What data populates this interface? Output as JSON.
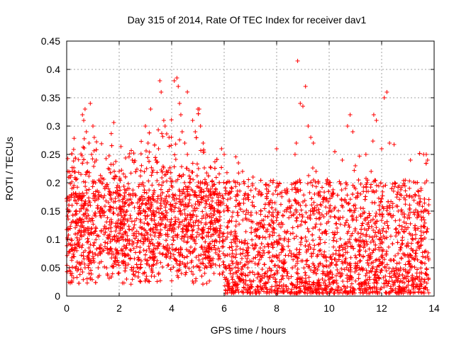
{
  "chart_data": {
    "type": "scatter",
    "title": "Day 315 of 2014, Rate Of TEC Index for receiver dav1",
    "xlabel": "GPS time / hours",
    "ylabel": "ROTI / TECUs",
    "xlim": [
      0,
      14
    ],
    "ylim": [
      0,
      0.45
    ],
    "xticks": [
      "0",
      "2",
      "4",
      "6",
      "8",
      "10",
      "12",
      "14"
    ],
    "yticks": [
      "0",
      "0.05",
      "0.1",
      "0.15",
      "0.2",
      "0.25",
      "0.3",
      "0.35",
      "0.4",
      "0.45"
    ],
    "grid": true,
    "marker": "+",
    "color": "#ff0000",
    "series": [
      {
        "name": "ROTI",
        "x": [
          0.05,
          0.1,
          0.15,
          0.2,
          0.1,
          0.2,
          0.3,
          0.05,
          0.12,
          0.25,
          0.4,
          0.5,
          0.55,
          0.6,
          0.65,
          0.7,
          0.75,
          0.8,
          0.85,
          0.9,
          0.95,
          1.0,
          1.05,
          1.1,
          0.6,
          0.7,
          0.8,
          0.9,
          1.0,
          0.75,
          0.85,
          0.95,
          1.05,
          1.2,
          1.3,
          1.5,
          1.7,
          1.9,
          2.0,
          2.1,
          2.3,
          2.5,
          2.7,
          2.9,
          3.0,
          3.1,
          3.2,
          3.3,
          3.4,
          3.5,
          3.55,
          3.6,
          3.7,
          3.75,
          3.8,
          3.9,
          4.0,
          4.1,
          4.2,
          4.25,
          4.3,
          4.35,
          4.4,
          4.5,
          4.6,
          4.7,
          4.8,
          4.9,
          5.0,
          5.05,
          5.1,
          5.2,
          5.3,
          5.5,
          5.7,
          5.9,
          6.0,
          6.1,
          6.3,
          6.5,
          6.7,
          6.9,
          7.1,
          7.3,
          7.5,
          7.7,
          7.9,
          8.0,
          8.1,
          8.3,
          8.5,
          8.6,
          8.7,
          8.75,
          8.8,
          8.9,
          9.0,
          9.1,
          9.2,
          9.3,
          9.4,
          9.5,
          9.6,
          9.7,
          9.8,
          9.9,
          10.0,
          10.1,
          10.3,
          10.5,
          10.7,
          10.8,
          10.9,
          11.0,
          11.2,
          11.4,
          11.6,
          11.7,
          11.8,
          12.0,
          12.1,
          12.2,
          12.3,
          12.5,
          12.7,
          12.9,
          13.1,
          13.3,
          13.5,
          13.6,
          13.7,
          13.75
        ],
        "y": [
          0.22,
          0.21,
          0.21,
          0.19,
          0.05,
          0.04,
          0.08,
          0.12,
          0.15,
          0.07,
          0.06,
          0.1,
          0.16,
          0.32,
          0.31,
          0.33,
          0.29,
          0.22,
          0.27,
          0.34,
          0.25,
          0.3,
          0.28,
          0.2,
          0.09,
          0.05,
          0.12,
          0.03,
          0.07,
          0.14,
          0.04,
          0.11,
          0.06,
          0.05,
          0.09,
          0.12,
          0.17,
          0.08,
          0.22,
          0.06,
          0.15,
          0.24,
          0.05,
          0.2,
          0.3,
          0.27,
          0.33,
          0.12,
          0.24,
          0.26,
          0.38,
          0.36,
          0.31,
          0.3,
          0.22,
          0.28,
          0.15,
          0.38,
          0.385,
          0.37,
          0.34,
          0.32,
          0.29,
          0.27,
          0.25,
          0.2,
          0.31,
          0.29,
          0.33,
          0.33,
          0.3,
          0.27,
          0.2,
          0.18,
          0.12,
          0.26,
          0.25,
          0.2,
          0.14,
          0.1,
          0.22,
          0.05,
          0.21,
          0.18,
          0.12,
          0.03,
          0.07,
          0.26,
          0.1,
          0.15,
          0.08,
          0.02,
          0.25,
          0.27,
          0.415,
          0.34,
          0.335,
          0.37,
          0.3,
          0.28,
          0.27,
          0.22,
          0.18,
          0.16,
          0.14,
          0.11,
          0.2,
          0.15,
          0.12,
          0.24,
          0.3,
          0.32,
          0.29,
          0.23,
          0.18,
          0.25,
          0.22,
          0.32,
          0.31,
          0.26,
          0.35,
          0.36,
          0.27,
          0.2,
          0.18,
          0.17,
          0.24,
          0.2,
          0.19,
          0.25,
          0.25,
          0.24
        ]
      }
    ]
  }
}
